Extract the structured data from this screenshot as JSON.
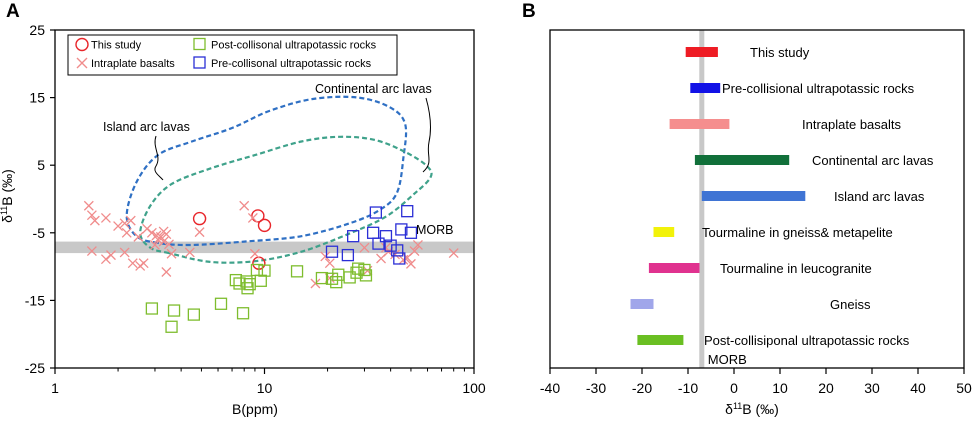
{
  "chart_data": [
    {
      "panel_label": "A",
      "type": "scatter",
      "xlabel": "B(ppm)",
      "ylabel_main": "δ",
      "ylabel_sup": "11",
      "ylabel_rest": "B (‰)",
      "xscale": "log",
      "xlim": [
        1,
        100
      ],
      "ylim": [
        -25,
        25
      ],
      "xticks": [
        {
          "v": 1,
          "label": "1"
        },
        {
          "v": 10,
          "label": "10"
        },
        {
          "v": 100,
          "label": "100"
        }
      ],
      "yticks": [
        25,
        15,
        5,
        -5,
        -15,
        -25
      ],
      "band": {
        "label": "MORB",
        "y0": -8,
        "y1": -6.3,
        "color": "#c8c8c8"
      },
      "legend": [
        {
          "name": "This study",
          "marker": "circle",
          "color": "#e8262b"
        },
        {
          "name": "Post-collisonal ultrapotassic rocks",
          "marker": "square",
          "color": "#7ebd2e"
        },
        {
          "name": "Intraplate basalts",
          "marker": "cross",
          "color": "#f08c8c"
        },
        {
          "name": "Pre-collisonal ultrapotassic rocks",
          "marker": "square",
          "color": "#2b2fd6"
        }
      ],
      "series": [
        {
          "name": "This study",
          "marker": "circle",
          "color": "#e8262b",
          "points": [
            [
              4.9,
              -2.9
            ],
            [
              9.3,
              -2.5
            ],
            [
              10.0,
              -3.9
            ],
            [
              9.4,
              -9.5
            ]
          ]
        },
        {
          "name": "Intraplate basalts",
          "marker": "cross",
          "color": "#f08c8c",
          "points": [
            [
              1.45,
              -1.0
            ],
            [
              1.5,
              -2.4
            ],
            [
              1.55,
              -3.2
            ],
            [
              1.75,
              -2.8
            ],
            [
              2.0,
              -4.0
            ],
            [
              2.15,
              -3.6
            ],
            [
              2.2,
              -5.0
            ],
            [
              2.3,
              -3.2
            ],
            [
              2.5,
              -5.6
            ],
            [
              2.75,
              -4.4
            ],
            [
              2.9,
              -5.0
            ],
            [
              3.05,
              -5.4
            ],
            [
              3.1,
              -6.0
            ],
            [
              3.2,
              -5.6
            ],
            [
              3.3,
              -6.3
            ],
            [
              3.4,
              -5.2
            ],
            [
              3.5,
              -6.7
            ],
            [
              3.3,
              -4.8
            ],
            [
              3.0,
              -6.8
            ],
            [
              1.5,
              -7.7
            ],
            [
              1.75,
              -8.9
            ],
            [
              1.85,
              -8.3
            ],
            [
              2.15,
              -7.9
            ],
            [
              2.35,
              -9.5
            ],
            [
              2.55,
              -9.9
            ],
            [
              2.65,
              -9.5
            ],
            [
              3.4,
              -10.8
            ],
            [
              3.6,
              -8.1
            ],
            [
              4.4,
              -7.9
            ],
            [
              4.9,
              -4.9
            ],
            [
              8.0,
              -1.0
            ],
            [
              8.8,
              -2.8
            ],
            [
              9.0,
              -8.1
            ],
            [
              19.5,
              -8.5
            ],
            [
              20.5,
              -9.5
            ],
            [
              17.5,
              -12.5
            ],
            [
              20.5,
              -11.7
            ],
            [
              30.0,
              -7.2
            ],
            [
              31.0,
              -10.6
            ],
            [
              36.0,
              -8.8
            ],
            [
              38.0,
              -7.2
            ],
            [
              39.0,
              -7.8
            ],
            [
              42.0,
              -8.2
            ],
            [
              46.0,
              -9.0
            ],
            [
              48.0,
              -8.7
            ],
            [
              50.0,
              -9.6
            ],
            [
              52.0,
              -7.7
            ],
            [
              54.0,
              -6.8
            ],
            [
              80.0,
              -8.0
            ]
          ]
        },
        {
          "name": "Post-collisonal ultrapotassic rocks",
          "marker": "square",
          "color": "#7ebd2e",
          "points": [
            [
              2.9,
              -16.2
            ],
            [
              3.6,
              -18.9
            ],
            [
              3.7,
              -16.5
            ],
            [
              4.6,
              -17.1
            ],
            [
              6.2,
              -15.5
            ],
            [
              7.3,
              -12.0
            ],
            [
              7.6,
              -12.5
            ],
            [
              8.2,
              -12.2
            ],
            [
              8.3,
              -13.2
            ],
            [
              8.5,
              -12.6
            ],
            [
              7.9,
              -16.9
            ],
            [
              9.2,
              -10.5
            ],
            [
              9.6,
              -12.1
            ],
            [
              10.0,
              -10.6
            ],
            [
              14.3,
              -10.7
            ],
            [
              18.8,
              -11.7
            ],
            [
              21.0,
              -11.8
            ],
            [
              22.0,
              -12.3
            ],
            [
              22.5,
              -11.2
            ],
            [
              25.5,
              -11.6
            ],
            [
              27.5,
              -10.9
            ],
            [
              28.0,
              -10.3
            ],
            [
              30.0,
              -10.5
            ],
            [
              30.5,
              -11.3
            ]
          ]
        },
        {
          "name": "Pre-collisonal ultrapotassic rocks",
          "marker": "square",
          "color": "#2b2fd6",
          "points": [
            [
              34.0,
              -2.0
            ],
            [
              48.0,
              -1.8
            ],
            [
              45.0,
              -4.5
            ],
            [
              38.0,
              -5.5
            ],
            [
              33.0,
              -5.0
            ],
            [
              35.0,
              -6.6
            ],
            [
              26.5,
              -5.5
            ],
            [
              21.0,
              -7.8
            ],
            [
              25.0,
              -8.3
            ],
            [
              40.0,
              -6.9
            ],
            [
              43.0,
              -7.6
            ],
            [
              50.0,
              -5.0
            ],
            [
              44.0,
              -8.8
            ]
          ]
        }
      ],
      "annotations": [
        {
          "text": "Continental arc lavas"
        },
        {
          "text": "Island arc lavas"
        },
        {
          "text": "MORB"
        }
      ],
      "fields": [
        {
          "name": "Continental arc lavas field",
          "color": "#2f70c4",
          "path": [
            [
              3.1,
              -6.5
            ],
            [
              2.45,
              -5.5
            ],
            [
              2.2,
              -2.5
            ],
            [
              2.45,
              2.5
            ],
            [
              3.1,
              6.5
            ],
            [
              4.5,
              8.5
            ],
            [
              7.0,
              10.5
            ],
            [
              10.5,
              13.0
            ],
            [
              17.0,
              14.8
            ],
            [
              28.0,
              15.0
            ],
            [
              40.0,
              13.5
            ],
            [
              47.0,
              11.0
            ],
            [
              46.0,
              6.0
            ],
            [
              43.0,
              1.0
            ],
            [
              36.0,
              -1.5
            ],
            [
              26.0,
              -3.5
            ],
            [
              15.0,
              -5.5
            ],
            [
              8.0,
              -6.3
            ],
            [
              4.5,
              -6.8
            ],
            [
              3.1,
              -6.5
            ]
          ]
        },
        {
          "name": "Island arc lavas field",
          "color": "#3fa28b",
          "path": [
            [
              3.5,
              -8.0
            ],
            [
              2.85,
              -7.2
            ],
            [
              2.55,
              -5.0
            ],
            [
              2.85,
              -1.0
            ],
            [
              3.6,
              2.2
            ],
            [
              5.5,
              4.5
            ],
            [
              9.0,
              6.5
            ],
            [
              15.0,
              8.5
            ],
            [
              23.0,
              9.2
            ],
            [
              34.0,
              8.7
            ],
            [
              48.0,
              6.8
            ],
            [
              60.0,
              4.8
            ],
            [
              62.0,
              3.2
            ],
            [
              52.0,
              0.8
            ],
            [
              38.0,
              -2.6
            ],
            [
              25.0,
              -5.2
            ],
            [
              15.0,
              -7.8
            ],
            [
              9.0,
              -9.2
            ],
            [
              5.5,
              -9.3
            ],
            [
              3.5,
              -8.0
            ]
          ]
        }
      ]
    },
    {
      "panel_label": "B",
      "type": "range-bar",
      "xlabel_main": "δ",
      "xlabel_sup": "11",
      "xlabel_rest": "B (‰)",
      "xlim": [
        -40,
        50
      ],
      "xticks": [
        -40,
        -30,
        -20,
        -10,
        0,
        10,
        20,
        30,
        40,
        50
      ],
      "reference_line": {
        "label": "MORB",
        "value": -7,
        "color": "#c8c8c8"
      },
      "bars": [
        {
          "label": "This study",
          "min": -10.5,
          "max": -3.5,
          "color": "#ee1c24"
        },
        {
          "label": "Pre-collisional ultrapotassic rocks",
          "min": -9.5,
          "max": -3.0,
          "color": "#1212e6"
        },
        {
          "label": "Intraplate basalts",
          "min": -14.0,
          "max": -1.0,
          "color": "#f58e8e"
        },
        {
          "label": "Continental arc lavas",
          "min": -8.5,
          "max": 12.0,
          "color": "#11703a"
        },
        {
          "label": "Island arc lavas",
          "min": -7.0,
          "max": 15.5,
          "color": "#3f74d4"
        },
        {
          "label": "Tourmaline in gneiss& metapelite",
          "min": -17.5,
          "max": -13.0,
          "color": "#f2f20a"
        },
        {
          "label": "Tourmaline in leucogranite",
          "min": -18.5,
          "max": -7.5,
          "color": "#e0328f"
        },
        {
          "label": "Gneiss",
          "min": -22.5,
          "max": -17.5,
          "color": "#a0a6ea"
        },
        {
          "label": "Post-collisiponal ultrapotassic rocks",
          "min": -21.0,
          "max": -11.0,
          "color": "#6abf22"
        }
      ]
    }
  ]
}
